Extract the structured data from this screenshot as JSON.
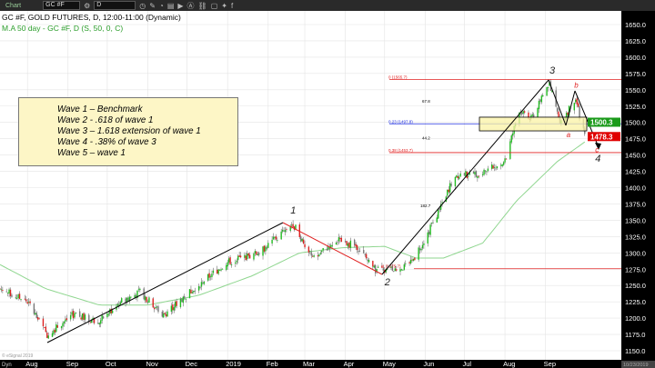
{
  "toolbar": {
    "chart_label": "Chart",
    "symbol": "GC #F",
    "interval": "D"
  },
  "chart_data": {
    "type": "candlestick",
    "title": "GC #F, GOLD FUTURES, D, 12:00-11:00 (Dynamic)",
    "indicator": "M.A 50 day - GC #F, D (S, 50, 0, C)",
    "ylim": [
      1137.5,
      1662.5
    ],
    "yticks": [
      1150,
      1175,
      1200,
      1225,
      1250,
      1275,
      1300,
      1325,
      1350,
      1375,
      1400,
      1425,
      1450,
      1475,
      1500,
      1525,
      1550,
      1575,
      1600,
      1625,
      1650
    ],
    "xticks": [
      "Aug",
      "Sep",
      "Oct",
      "Nov",
      "Dec",
      "2019",
      "Feb",
      "Mar",
      "Apr",
      "May",
      "Jun",
      "Jul",
      "Aug",
      "Sep"
    ],
    "grid": true,
    "price_path": [
      [
        "2018-07-11",
        1245
      ],
      [
        "2018-08-01",
        1225
      ],
      [
        "2018-08-16",
        1175
      ],
      [
        "2018-09-05",
        1205
      ],
      [
        "2018-09-25",
        1195
      ],
      [
        "2018-10-11",
        1225
      ],
      [
        "2018-10-26",
        1240
      ],
      [
        "2018-11-13",
        1205
      ],
      [
        "2018-12-03",
        1240
      ],
      [
        "2018-12-31",
        1285
      ],
      [
        "2019-01-25",
        1300
      ],
      [
        "2019-02-20",
        1345
      ],
      [
        "2019-03-07",
        1290
      ],
      [
        "2019-03-25",
        1320
      ],
      [
        "2019-04-10",
        1310
      ],
      [
        "2019-04-23",
        1275
      ],
      [
        "2019-05-02",
        1272
      ],
      [
        "2019-05-20",
        1280
      ],
      [
        "2019-06-03",
        1330
      ],
      [
        "2019-06-24",
        1420
      ],
      [
        "2019-07-03",
        1420
      ],
      [
        "2019-07-17",
        1425
      ],
      [
        "2019-08-01",
        1440
      ],
      [
        "2019-08-12",
        1520
      ],
      [
        "2019-08-21",
        1505
      ],
      [
        "2019-09-04",
        1560
      ],
      [
        "2019-09-12",
        1500
      ],
      [
        "2019-09-24",
        1535
      ],
      [
        "2019-10-01",
        1478
      ]
    ],
    "ma50_path": [
      [
        "2018-07-11",
        1282
      ],
      [
        "2018-08-15",
        1245
      ],
      [
        "2018-09-25",
        1220
      ],
      [
        "2018-11-01",
        1220
      ],
      [
        "2018-12-10",
        1235
      ],
      [
        "2019-01-20",
        1265
      ],
      [
        "2019-02-25",
        1300
      ],
      [
        "2019-03-30",
        1308
      ],
      [
        "2019-05-01",
        1310
      ],
      [
        "2019-05-25",
        1292
      ],
      [
        "2019-06-15",
        1292
      ],
      [
        "2019-07-15",
        1315
      ],
      [
        "2019-08-10",
        1380
      ],
      [
        "2019-09-10",
        1440
      ],
      [
        "2019-10-01",
        1470
      ]
    ],
    "fib_levels": [
      {
        "label": "0 (1565.7)",
        "value": 1565.7,
        "color": "#e02020"
      },
      {
        "label": "0.23 (1497.8)",
        "value": 1497.8,
        "color": "#2030e0"
      },
      {
        "label": "0.38 (1453.7)",
        "value": 1453.7,
        "color": "#e02020"
      },
      {
        "label": "1 (1275.7)",
        "value": 1275.7,
        "color": "#e02020"
      }
    ],
    "measures": [
      {
        "label": "67.8",
        "value": 1530
      },
      {
        "label": "44.2",
        "value": 1474
      },
      {
        "label": "182.7",
        "value": 1370
      }
    ],
    "zone": [
      1487,
      1508
    ],
    "waves": [
      {
        "label": "1",
        "date": "2019-02-18",
        "value": 1360
      },
      {
        "label": "2",
        "date": "2019-05-01",
        "value": 1250
      },
      {
        "label": "3",
        "date": "2019-09-04",
        "value": 1575
      },
      {
        "label": "4",
        "date": "2019-10-09",
        "value": 1440
      },
      {
        "label": "a",
        "date": "2019-09-17",
        "value": 1477
      },
      {
        "label": "b",
        "date": "2019-09-23",
        "value": 1553
      },
      {
        "label": "c",
        "date": "2019-10-09",
        "value": 1460
      }
    ],
    "last_close": {
      "label": "1478.3",
      "value": 1478.3,
      "color": "#e00000"
    },
    "tag": {
      "label": "1500.3",
      "value": 1500.3,
      "color": "#1a9a1a"
    },
    "date_label": "10/23/2019"
  },
  "note": {
    "lines": [
      "Wave 1 – Benchmark",
      "Wave 2 - .618 of wave 1",
      "Wave 3 – 1.618 extension of wave 1",
      "Wave 4 - .38% of wave 3",
      "Wave 5 – wave 1"
    ]
  },
  "footer": {
    "dyn": "Dyn",
    "watermark": "© eSignal 2019"
  }
}
